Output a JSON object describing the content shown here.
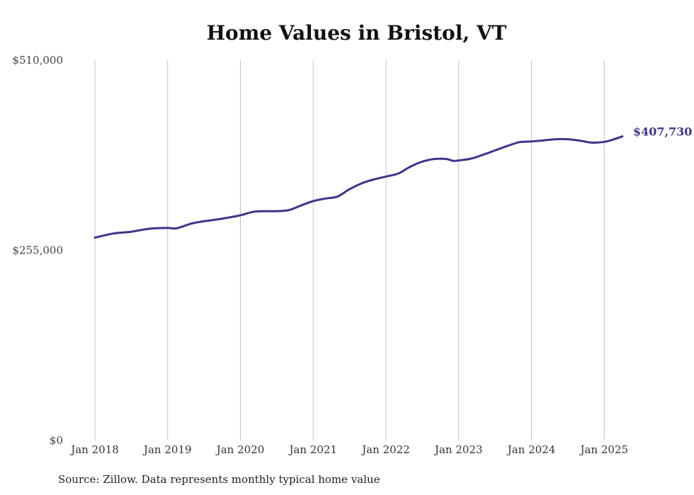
{
  "chart_data": {
    "type": "line",
    "title": "Home Values in Bristol, VT",
    "source": "Source: Zillow. Data represents monthly typical home value",
    "ylim": [
      0,
      510000
    ],
    "y_ticks": [
      {
        "value": 0,
        "label": "$0"
      },
      {
        "value": 255000,
        "label": "$255,000"
      },
      {
        "value": 510000,
        "label": "$510,000"
      }
    ],
    "x_ticks": [
      {
        "x": 2018.0,
        "label": "Jan 2018"
      },
      {
        "x": 2019.0,
        "label": "Jan 2019"
      },
      {
        "x": 2020.0,
        "label": "Jan 2020"
      },
      {
        "x": 2021.0,
        "label": "Jan 2021"
      },
      {
        "x": 2022.0,
        "label": "Jan 2022"
      },
      {
        "x": 2023.0,
        "label": "Jan 2023"
      },
      {
        "x": 2024.0,
        "label": "Jan 2024"
      },
      {
        "x": 2025.0,
        "label": "Jan 2025"
      }
    ],
    "xlim": [
      2018.0,
      2025.25
    ],
    "grid": "vertical",
    "line_color": "#3d3589",
    "end_label": "$407,730",
    "series": [
      {
        "points": [
          [
            2018.0,
            272000
          ],
          [
            2018.25,
            277500
          ],
          [
            2018.5,
            280000
          ],
          [
            2018.75,
            284000
          ],
          [
            2019.0,
            285000
          ],
          [
            2019.12,
            284500
          ],
          [
            2019.33,
            291000
          ],
          [
            2019.5,
            294000
          ],
          [
            2019.75,
            297500
          ],
          [
            2020.0,
            302000
          ],
          [
            2020.17,
            306500
          ],
          [
            2020.33,
            307500
          ],
          [
            2020.5,
            307500
          ],
          [
            2020.67,
            309000
          ],
          [
            2020.83,
            315000
          ],
          [
            2021.0,
            321000
          ],
          [
            2021.17,
            324500
          ],
          [
            2021.33,
            327000
          ],
          [
            2021.5,
            337000
          ],
          [
            2021.67,
            345000
          ],
          [
            2021.83,
            350000
          ],
          [
            2022.0,
            354000
          ],
          [
            2022.17,
            358000
          ],
          [
            2022.33,
            367000
          ],
          [
            2022.5,
            374000
          ],
          [
            2022.67,
            377500
          ],
          [
            2022.83,
            377500
          ],
          [
            2022.92,
            375000
          ],
          [
            2023.0,
            375500
          ],
          [
            2023.17,
            378000
          ],
          [
            2023.33,
            383000
          ],
          [
            2023.5,
            389000
          ],
          [
            2023.67,
            395000
          ],
          [
            2023.83,
            400000
          ],
          [
            2024.0,
            401000
          ],
          [
            2024.17,
            402500
          ],
          [
            2024.33,
            404000
          ],
          [
            2024.5,
            404000
          ],
          [
            2024.67,
            402000
          ],
          [
            2024.83,
            399500
          ],
          [
            2025.0,
            400500
          ],
          [
            2025.12,
            403500
          ],
          [
            2025.25,
            407730
          ]
        ]
      }
    ]
  }
}
